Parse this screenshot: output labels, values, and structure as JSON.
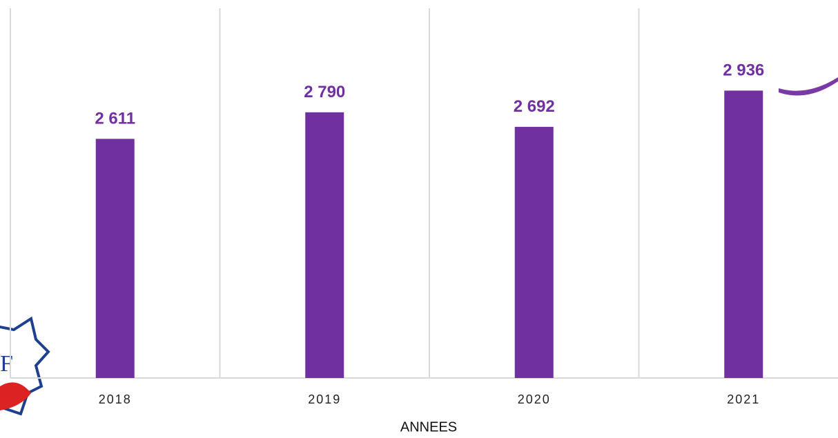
{
  "chart_data": {
    "type": "bar",
    "x_label": "ANNEES",
    "categories": [
      "2018",
      "2019",
      "2020",
      "2021"
    ],
    "values": [
      2611,
      2790,
      2692,
      2936
    ],
    "value_labels": [
      "2 611",
      "2 790",
      "2 692",
      "2 936"
    ],
    "color": "#7030a0",
    "ylim": [
      1000,
      3500
    ]
  }
}
